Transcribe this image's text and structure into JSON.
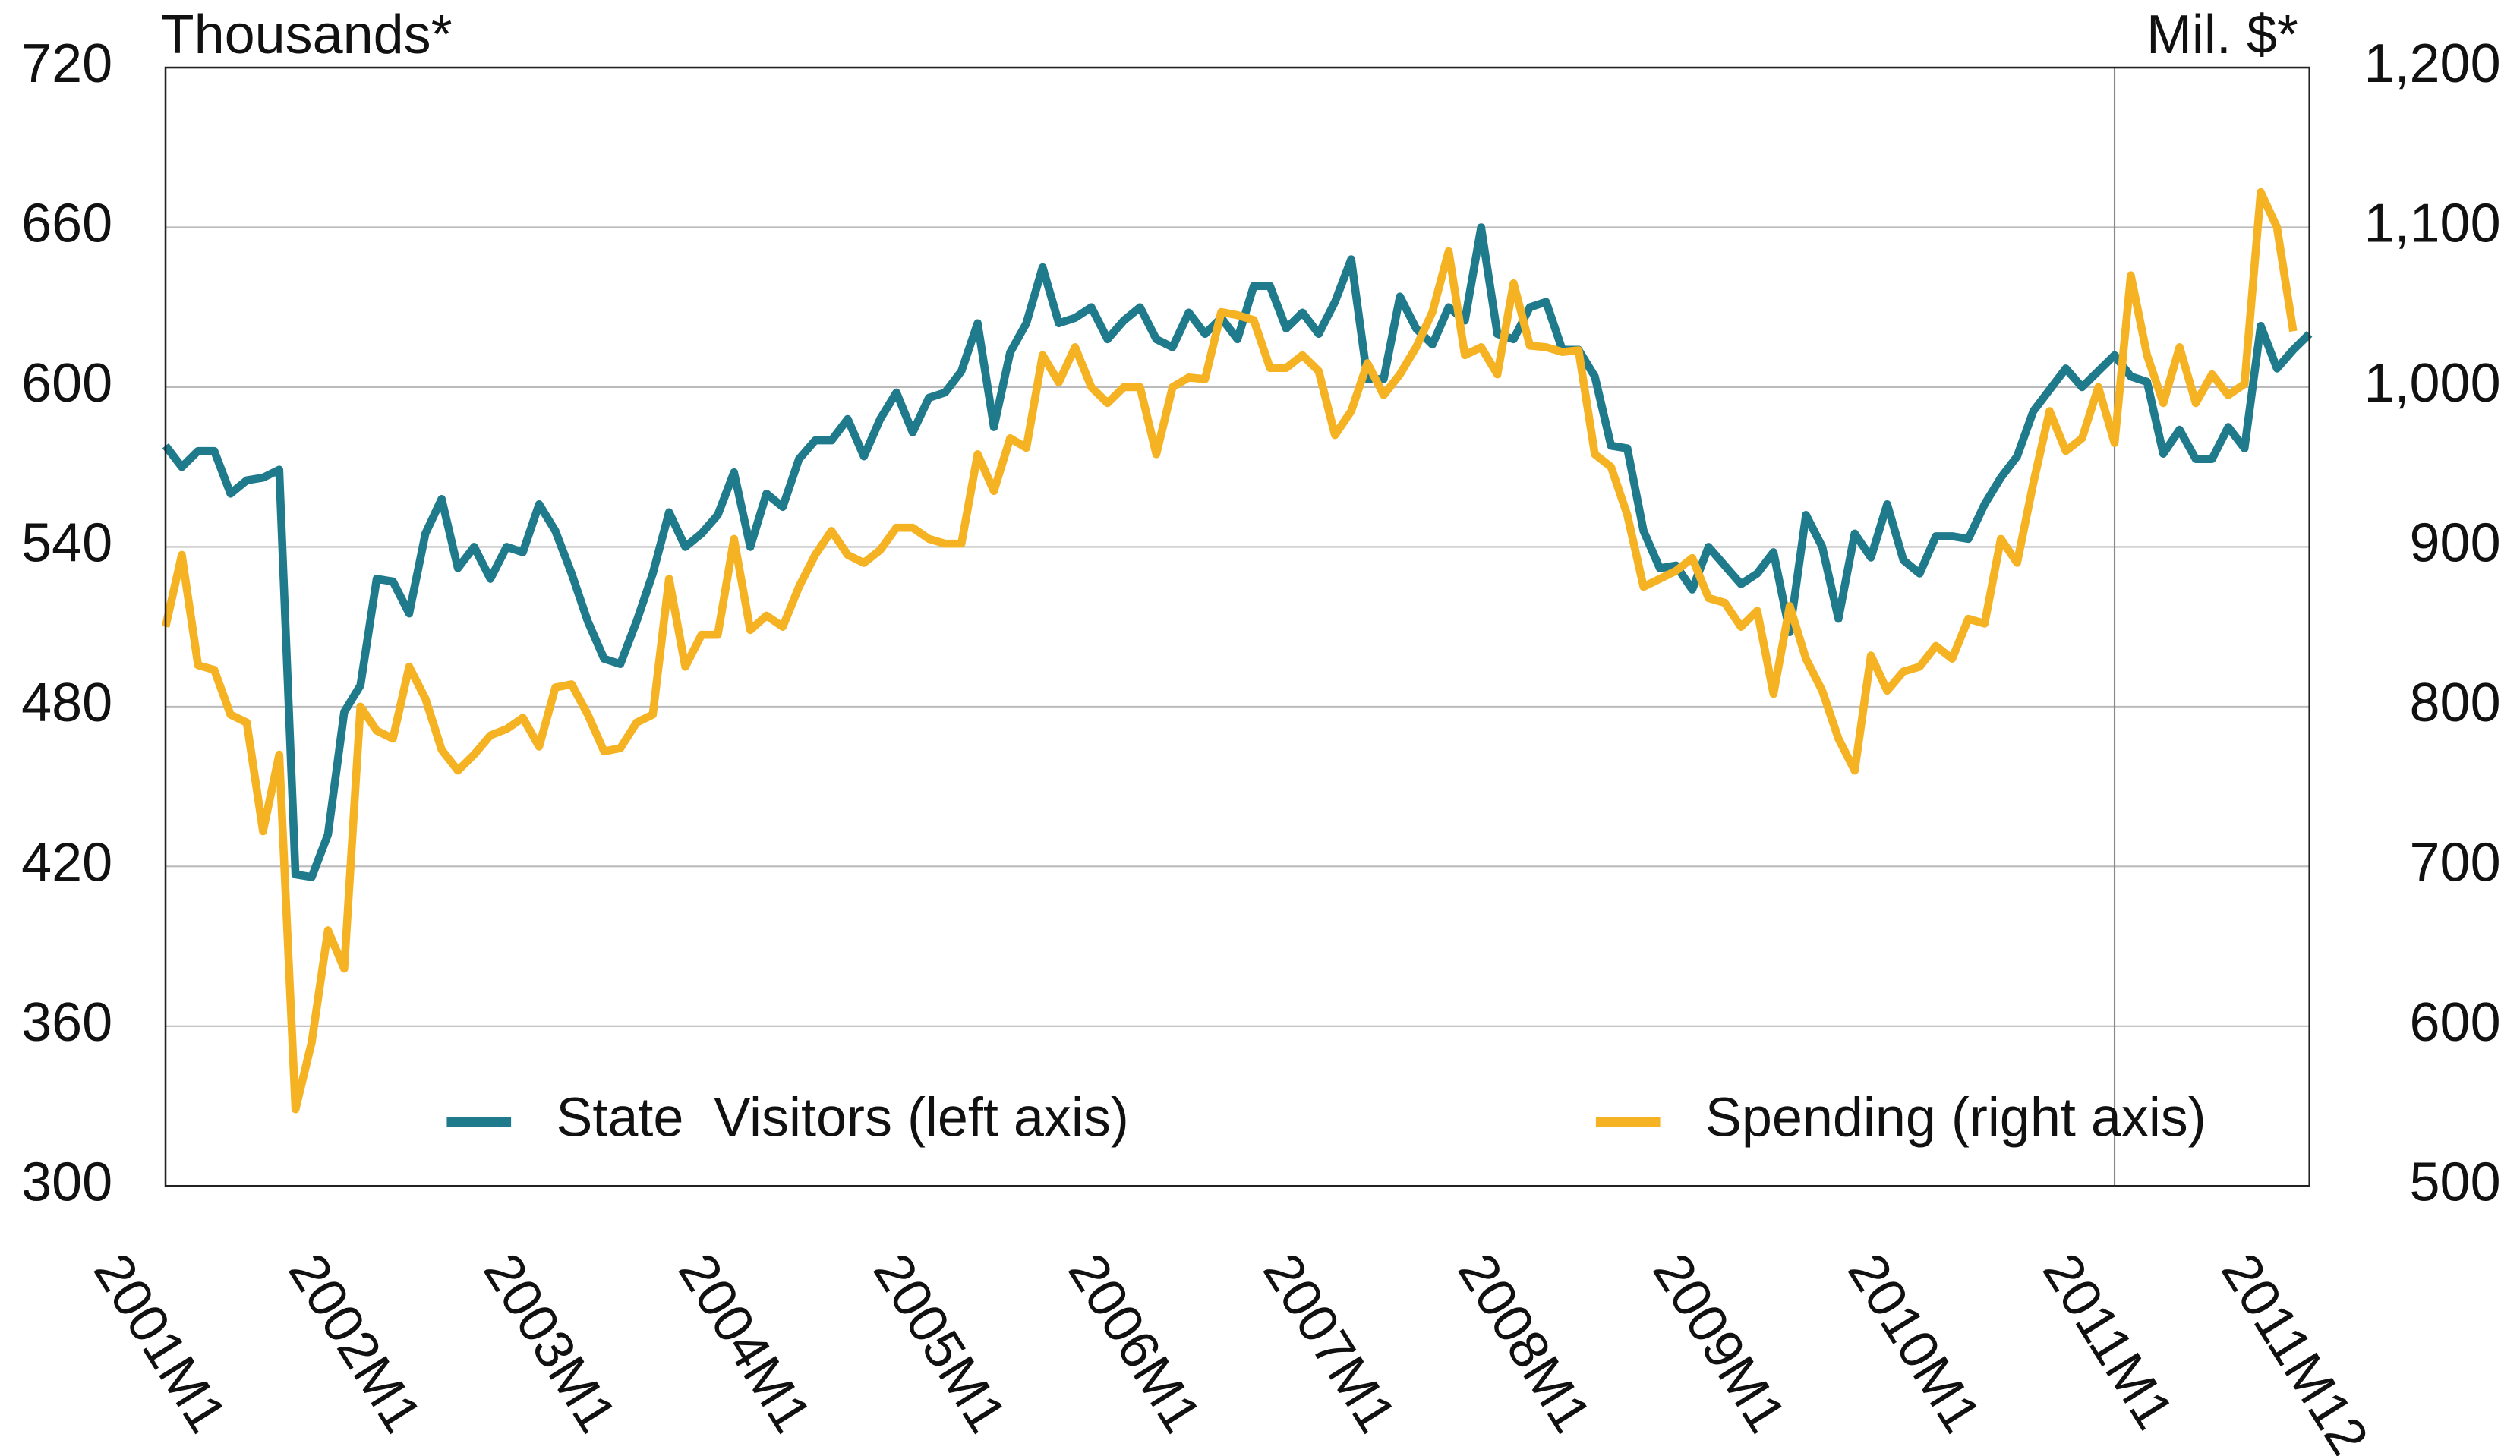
{
  "chart_data": {
    "type": "line",
    "y_label": "Thousands*",
    "y2_label": "Mil. $*",
    "categories": [
      "2001M1",
      null,
      null,
      null,
      null,
      null,
      null,
      null,
      null,
      null,
      null,
      null,
      "2002M1",
      null,
      null,
      null,
      null,
      null,
      null,
      null,
      null,
      null,
      null,
      null,
      "2003M1",
      null,
      null,
      null,
      null,
      null,
      null,
      null,
      null,
      null,
      null,
      null,
      "2004M1",
      null,
      null,
      null,
      null,
      null,
      null,
      null,
      null,
      null,
      null,
      null,
      "2005M1",
      null,
      null,
      null,
      null,
      null,
      null,
      null,
      null,
      null,
      null,
      null,
      "2006M1",
      null,
      null,
      null,
      null,
      null,
      null,
      null,
      null,
      null,
      null,
      null,
      "2007M1",
      null,
      null,
      null,
      null,
      null,
      null,
      null,
      null,
      null,
      null,
      null,
      "2008M1",
      null,
      null,
      null,
      null,
      null,
      null,
      null,
      null,
      null,
      null,
      null,
      "2009M1",
      null,
      null,
      null,
      null,
      null,
      null,
      null,
      null,
      null,
      null,
      null,
      "2010M1",
      null,
      null,
      null,
      null,
      null,
      null,
      null,
      null,
      null,
      null,
      null,
      "2011M1",
      null,
      null,
      null,
      null,
      null,
      null,
      null,
      null,
      null,
      null,
      "2011M12",
      null
    ],
    "series": [
      {
        "name": "State  Visitors (left axis)",
        "color": "#1f7a8c",
        "axis": "y",
        "values": [
          578,
          570,
          576,
          576,
          560,
          565,
          566,
          569,
          417,
          416,
          432,
          478,
          488,
          528,
          527,
          515,
          545,
          558,
          532,
          540,
          528,
          540,
          538,
          556,
          546,
          530,
          512,
          498,
          496,
          512,
          530,
          553,
          540,
          545,
          552,
          568,
          540,
          560,
          555,
          573,
          580,
          580,
          588,
          574,
          588,
          598,
          583,
          596,
          598,
          606,
          624,
          585,
          613,
          624,
          645,
          624,
          626,
          630,
          618,
          625,
          630,
          618,
          615,
          628,
          620,
          626,
          618,
          638,
          638,
          622,
          628,
          620,
          632,
          648,
          603,
          603,
          634,
          622,
          616,
          630,
          625,
          660,
          620,
          618,
          630,
          632,
          614,
          614,
          604,
          578,
          577,
          546,
          532,
          533,
          524,
          540,
          533,
          526,
          530,
          538,
          508,
          552,
          540,
          513,
          545,
          536,
          556,
          535,
          530,
          544,
          544,
          543,
          556,
          566,
          574,
          591,
          599,
          607,
          600,
          606,
          612,
          604,
          602,
          575,
          584,
          573,
          573,
          585,
          577,
          623,
          607,
          614,
          620
        ]
      },
      {
        "name": "Spending (right axis)",
        "color": "#f5b324",
        "axis": "y2",
        "values": [
          850,
          895,
          826,
          823,
          795,
          790,
          722,
          770,
          548,
          590,
          660,
          636,
          800,
          785,
          780,
          825,
          805,
          773,
          760,
          770,
          782,
          786,
          793,
          775,
          812,
          814,
          795,
          772,
          774,
          790,
          795,
          880,
          825,
          845,
          845,
          905,
          848,
          857,
          850,
          875,
          895,
          910,
          895,
          890,
          898,
          912,
          912,
          905,
          902,
          902,
          958,
          935,
          968,
          962,
          1020,
          1003,
          1025,
          1000,
          990,
          1000,
          1000,
          958,
          1000,
          1006,
          1005,
          1047,
          1045,
          1042,
          1012,
          1012,
          1020,
          1010,
          970,
          985,
          1015,
          995,
          1008,
          1025,
          1047,
          1085,
          1020,
          1025,
          1008,
          1065,
          1026,
          1025,
          1022,
          1023,
          958,
          950,
          920,
          875,
          880,
          885,
          893,
          868,
          865,
          850,
          860,
          808,
          863,
          830,
          810,
          780,
          760,
          832,
          810,
          822,
          825,
          838,
          830,
          855,
          852,
          905,
          890,
          940,
          985,
          960,
          968,
          1000,
          965,
          1070,
          1020,
          990,
          1025,
          990,
          1008,
          995,
          1002,
          1122,
          1100,
          1035,
          null
        ]
      }
    ],
    "ylim": [
      300,
      720
    ],
    "yticks": [
      300,
      360,
      420,
      480,
      540,
      600,
      660,
      720
    ],
    "y2lim": [
      500,
      1200
    ],
    "y2ticks": [
      500,
      600,
      700,
      800,
      900,
      {
        "value": 1000,
        "label": "1,000"
      },
      {
        "value": 1100,
        "label": "1,100"
      },
      {
        "value": 1200,
        "label": "1,200"
      }
    ],
    "grid": true,
    "legend": "bottom"
  }
}
